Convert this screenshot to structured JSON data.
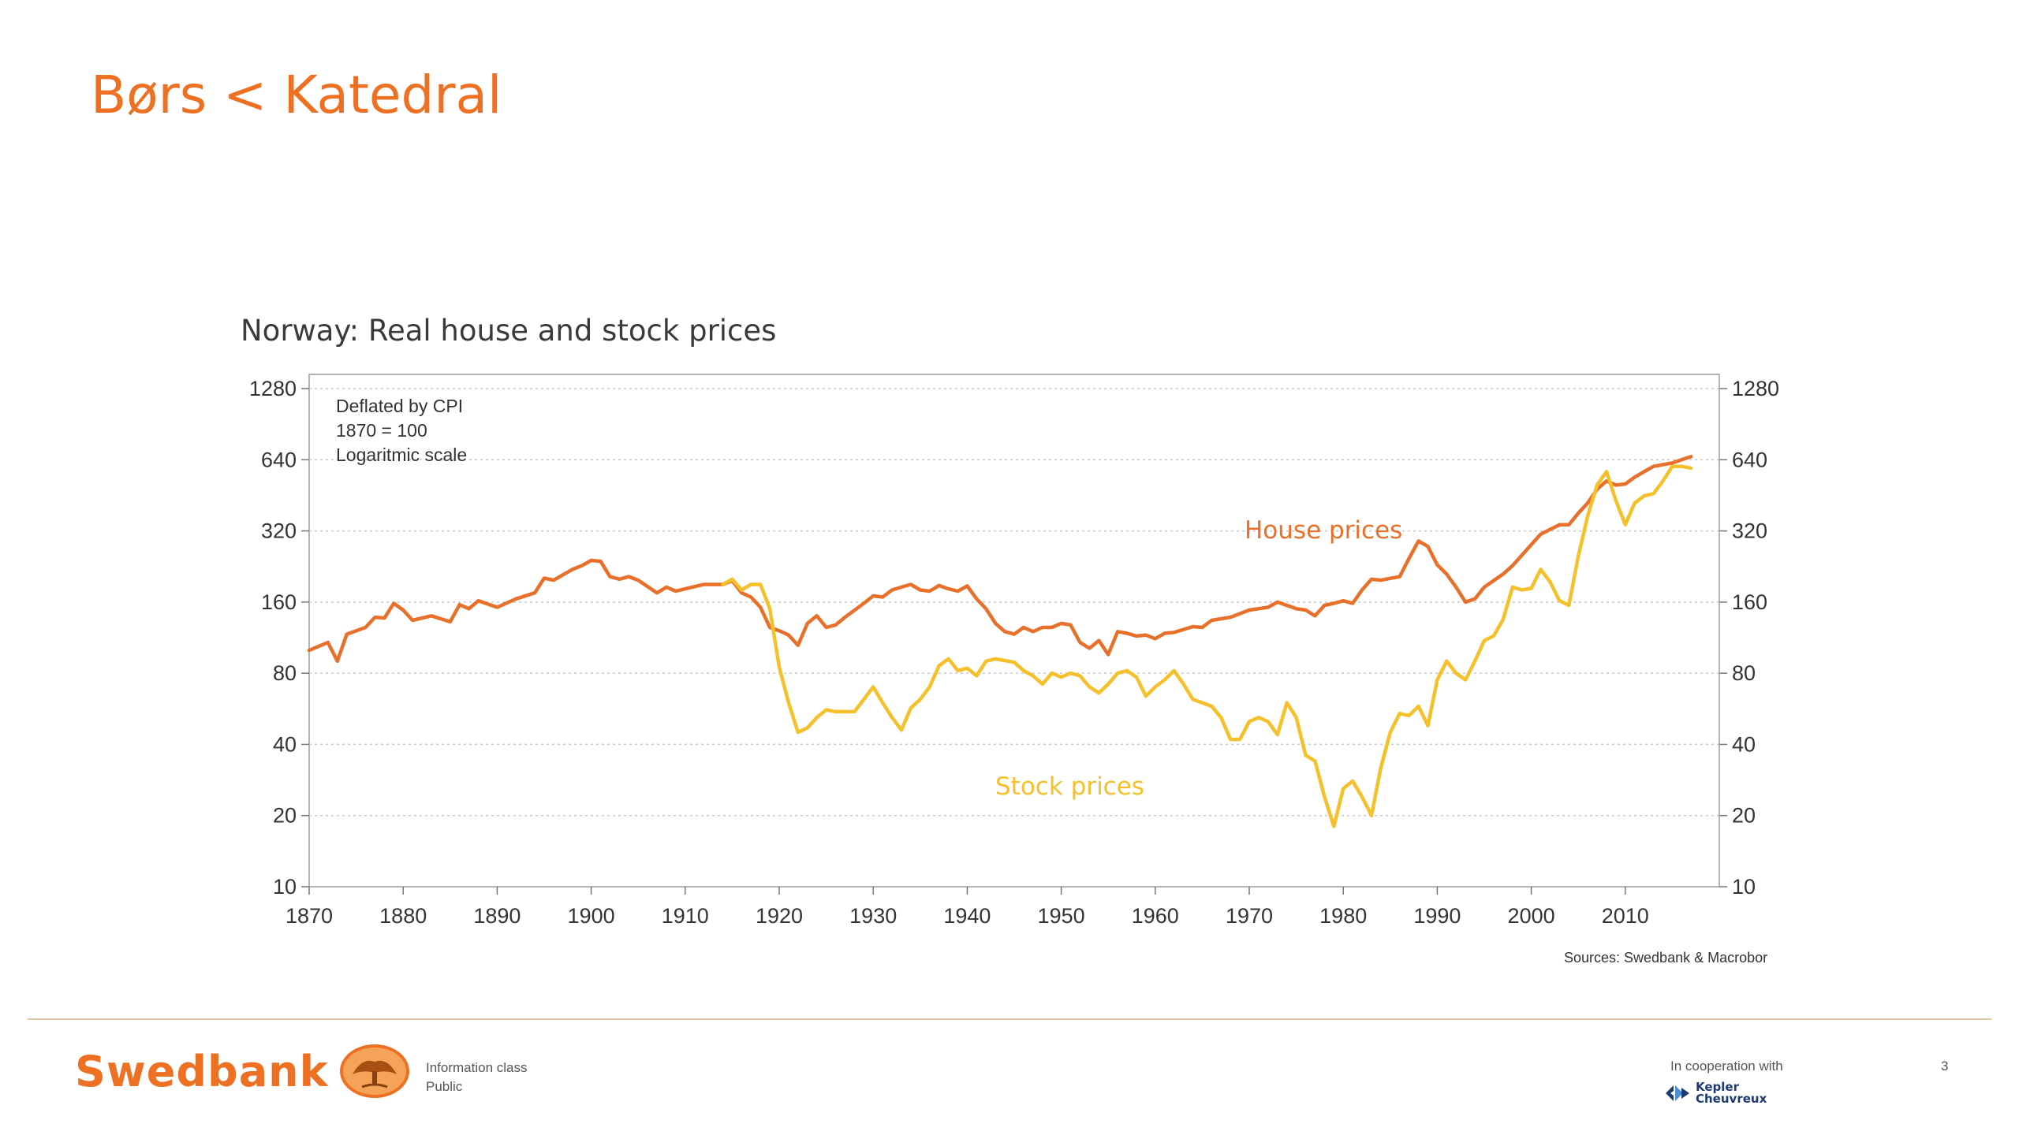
{
  "slide": {
    "title": "Børs < Katedral",
    "page_number": "3"
  },
  "footer": {
    "brand": "Swedbank",
    "info_class_label": "Information class",
    "info_class_value": "Public",
    "cooperation_label": "In cooperation with",
    "partner_line1": "Kepler",
    "partner_line2": "Cheuvreux"
  },
  "colors": {
    "accent": "#ee7023",
    "house_series": "#e8702a",
    "stock_series": "#f5c02a",
    "grid": "#c8c8c8",
    "axis_text": "#333333"
  },
  "chart_data": {
    "type": "line",
    "title": "Norway: Real house and stock prices",
    "annotations": [
      "Deflated by CPI",
      "1870 = 100",
      "Logaritmic scale"
    ],
    "source": "Sources: Swedbank & Macrobor",
    "y_scale": "log2",
    "ylim": [
      10,
      1280
    ],
    "y_ticks": [
      10,
      20,
      40,
      80,
      160,
      320,
      640,
      1280
    ],
    "xlim": [
      1870,
      2020
    ],
    "x_ticks": [
      1870,
      1880,
      1890,
      1900,
      1910,
      1920,
      1930,
      1940,
      1950,
      1960,
      1970,
      1980,
      1990,
      2000,
      2010
    ],
    "grid": true,
    "series": [
      {
        "name": "House prices",
        "color": "#e8702a",
        "points": [
          [
            1870,
            100
          ],
          [
            1872,
            108
          ],
          [
            1873,
            90
          ],
          [
            1874,
            117
          ],
          [
            1876,
            125
          ],
          [
            1877,
            138
          ],
          [
            1878,
            137
          ],
          [
            1879,
            158
          ],
          [
            1880,
            148
          ],
          [
            1881,
            134
          ],
          [
            1883,
            140
          ],
          [
            1885,
            132
          ],
          [
            1886,
            156
          ],
          [
            1887,
            150
          ],
          [
            1888,
            162
          ],
          [
            1890,
            152
          ],
          [
            1892,
            165
          ],
          [
            1894,
            175
          ],
          [
            1895,
            202
          ],
          [
            1896,
            198
          ],
          [
            1898,
            220
          ],
          [
            1899,
            228
          ],
          [
            1900,
            240
          ],
          [
            1901,
            238
          ],
          [
            1902,
            205
          ],
          [
            1903,
            200
          ],
          [
            1904,
            205
          ],
          [
            1905,
            198
          ],
          [
            1907,
            175
          ],
          [
            1908,
            185
          ],
          [
            1909,
            178
          ],
          [
            1910,
            182
          ],
          [
            1912,
            190
          ],
          [
            1914,
            190
          ],
          [
            1915,
            197
          ],
          [
            1916,
            175
          ],
          [
            1917,
            168
          ],
          [
            1918,
            152
          ],
          [
            1919,
            125
          ],
          [
            1920,
            121
          ],
          [
            1921,
            116
          ],
          [
            1922,
            105
          ],
          [
            1923,
            130
          ],
          [
            1924,
            140
          ],
          [
            1925,
            125
          ],
          [
            1926,
            128
          ],
          [
            1927,
            138
          ],
          [
            1929,
            158
          ],
          [
            1930,
            170
          ],
          [
            1931,
            168
          ],
          [
            1932,
            180
          ],
          [
            1933,
            185
          ],
          [
            1934,
            190
          ],
          [
            1935,
            180
          ],
          [
            1936,
            178
          ],
          [
            1937,
            188
          ],
          [
            1938,
            182
          ],
          [
            1939,
            178
          ],
          [
            1940,
            187
          ],
          [
            1941,
            165
          ],
          [
            1942,
            150
          ],
          [
            1943,
            130
          ],
          [
            1944,
            120
          ],
          [
            1945,
            117
          ],
          [
            1946,
            125
          ],
          [
            1947,
            120
          ],
          [
            1948,
            125
          ],
          [
            1949,
            125
          ],
          [
            1950,
            130
          ],
          [
            1951,
            128
          ],
          [
            1952,
            108
          ],
          [
            1953,
            102
          ],
          [
            1954,
            110
          ],
          [
            1955,
            96
          ],
          [
            1956,
            120
          ],
          [
            1957,
            118
          ],
          [
            1958,
            115
          ],
          [
            1959,
            116
          ],
          [
            1960,
            112
          ],
          [
            1961,
            118
          ],
          [
            1962,
            119
          ],
          [
            1964,
            126
          ],
          [
            1965,
            125
          ],
          [
            1966,
            134
          ],
          [
            1968,
            138
          ],
          [
            1970,
            148
          ],
          [
            1972,
            152
          ],
          [
            1973,
            160
          ],
          [
            1975,
            150
          ],
          [
            1976,
            148
          ],
          [
            1977,
            140
          ],
          [
            1978,
            155
          ],
          [
            1979,
            158
          ],
          [
            1980,
            162
          ],
          [
            1981,
            158
          ],
          [
            1982,
            180
          ],
          [
            1983,
            200
          ],
          [
            1984,
            198
          ],
          [
            1986,
            205
          ],
          [
            1987,
            245
          ],
          [
            1988,
            290
          ],
          [
            1989,
            275
          ],
          [
            1990,
            230
          ],
          [
            1991,
            210
          ],
          [
            1992,
            185
          ],
          [
            1993,
            160
          ],
          [
            1994,
            165
          ],
          [
            1995,
            185
          ],
          [
            1997,
            210
          ],
          [
            1998,
            228
          ],
          [
            2000,
            280
          ],
          [
            2001,
            310
          ],
          [
            2003,
            340
          ],
          [
            2004,
            340
          ],
          [
            2005,
            380
          ],
          [
            2006,
            420
          ],
          [
            2007,
            480
          ],
          [
            2008,
            520
          ],
          [
            2009,
            500
          ],
          [
            2010,
            505
          ],
          [
            2011,
            540
          ],
          [
            2012,
            570
          ],
          [
            2013,
            600
          ],
          [
            2015,
            620
          ],
          [
            2016,
            640
          ],
          [
            2017,
            660
          ]
        ]
      },
      {
        "name": "Stock prices",
        "color": "#f5c02a",
        "points": [
          [
            1914,
            190
          ],
          [
            1915,
            200
          ],
          [
            1916,
            180
          ],
          [
            1917,
            190
          ],
          [
            1918,
            190
          ],
          [
            1919,
            150
          ],
          [
            1920,
            85
          ],
          [
            1921,
            60
          ],
          [
            1922,
            45
          ],
          [
            1923,
            47
          ],
          [
            1924,
            52
          ],
          [
            1925,
            56
          ],
          [
            1926,
            55
          ],
          [
            1928,
            55
          ],
          [
            1929,
            62
          ],
          [
            1930,
            70
          ],
          [
            1931,
            60
          ],
          [
            1932,
            52
          ],
          [
            1933,
            46
          ],
          [
            1934,
            57
          ],
          [
            1935,
            62
          ],
          [
            1936,
            70
          ],
          [
            1937,
            86
          ],
          [
            1938,
            92
          ],
          [
            1939,
            82
          ],
          [
            1940,
            84
          ],
          [
            1941,
            78
          ],
          [
            1942,
            90
          ],
          [
            1943,
            92
          ],
          [
            1945,
            89
          ],
          [
            1946,
            82
          ],
          [
            1947,
            78
          ],
          [
            1948,
            72
          ],
          [
            1949,
            80
          ],
          [
            1950,
            77
          ],
          [
            1951,
            80
          ],
          [
            1952,
            78
          ],
          [
            1953,
            70
          ],
          [
            1954,
            66
          ],
          [
            1955,
            72
          ],
          [
            1956,
            80
          ],
          [
            1957,
            82
          ],
          [
            1958,
            77
          ],
          [
            1959,
            64
          ],
          [
            1960,
            70
          ],
          [
            1961,
            75
          ],
          [
            1962,
            82
          ],
          [
            1963,
            72
          ],
          [
            1964,
            62
          ],
          [
            1965,
            60
          ],
          [
            1966,
            58
          ],
          [
            1967,
            52
          ],
          [
            1968,
            42
          ],
          [
            1969,
            42
          ],
          [
            1970,
            50
          ],
          [
            1971,
            52
          ],
          [
            1972,
            50
          ],
          [
            1973,
            44
          ],
          [
            1974,
            60
          ],
          [
            1975,
            52
          ],
          [
            1976,
            36
          ],
          [
            1977,
            34
          ],
          [
            1978,
            24
          ],
          [
            1979,
            18
          ],
          [
            1980,
            26
          ],
          [
            1981,
            28
          ],
          [
            1982,
            24
          ],
          [
            1983,
            20
          ],
          [
            1984,
            32
          ],
          [
            1985,
            45
          ],
          [
            1986,
            54
          ],
          [
            1987,
            53
          ],
          [
            1988,
            58
          ],
          [
            1989,
            48
          ],
          [
            1990,
            75
          ],
          [
            1991,
            90
          ],
          [
            1992,
            80
          ],
          [
            1993,
            75
          ],
          [
            1994,
            90
          ],
          [
            1995,
            110
          ],
          [
            1996,
            115
          ],
          [
            1997,
            135
          ],
          [
            1998,
            185
          ],
          [
            1999,
            180
          ],
          [
            2000,
            183
          ],
          [
            2001,
            220
          ],
          [
            2002,
            195
          ],
          [
            2003,
            162
          ],
          [
            2004,
            155
          ],
          [
            2005,
            250
          ],
          [
            2006,
            370
          ],
          [
            2007,
            500
          ],
          [
            2008,
            570
          ],
          [
            2009,
            430
          ],
          [
            2010,
            340
          ],
          [
            2011,
            420
          ],
          [
            2012,
            450
          ],
          [
            2013,
            460
          ],
          [
            2014,
            520
          ],
          [
            2015,
            600
          ],
          [
            2016,
            600
          ],
          [
            2017,
            590
          ]
        ]
      }
    ],
    "series_labels": [
      "House prices",
      "Stock prices"
    ]
  }
}
